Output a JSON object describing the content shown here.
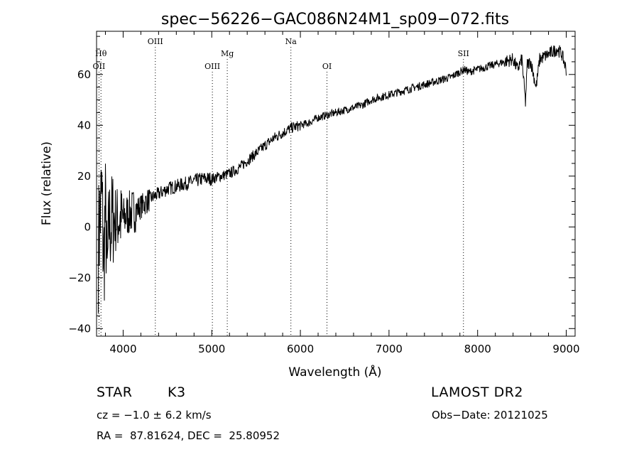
{
  "chart_data": {
    "type": "line",
    "title": "spec−56226−GAC086N24M1_sp09−072.fits",
    "xlabel": "Wavelength (Å)",
    "ylabel": "Flux (relative)",
    "xlim": [
      3700,
      9100
    ],
    "ylim": [
      -43,
      77
    ],
    "x_ticks": [
      4000,
      5000,
      6000,
      7000,
      8000,
      9000
    ],
    "y_ticks": [
      -40,
      -20,
      0,
      20,
      40,
      60
    ],
    "y_tick_labels": [
      "−40",
      "−20",
      "0",
      "20",
      "40",
      "60"
    ],
    "grid": false,
    "series": [
      {
        "x": [
          3720,
          3740,
          3760,
          3780,
          3800,
          3820,
          3840,
          3860,
          3880,
          3900,
          3950,
          4000,
          4050,
          4100,
          4150,
          4200,
          4300,
          4400,
          4500,
          4600,
          4700,
          4800,
          4900,
          5000,
          5100,
          5200,
          5300,
          5400,
          5500,
          5600,
          5700,
          5800,
          5900,
          6000,
          6100,
          6200,
          6300,
          6400,
          6500,
          6600,
          6700,
          6800,
          6900,
          7000,
          7100,
          7200,
          7300,
          7400,
          7500,
          7600,
          7700,
          7800,
          7850,
          7900,
          8000,
          8100,
          8200,
          8300,
          8400,
          8450,
          8500,
          8540,
          8560,
          8600,
          8660,
          8700,
          8750,
          8800,
          8850,
          8900,
          8950,
          9000
        ],
        "y": [
          -8,
          5,
          12,
          -15,
          8,
          -20,
          2,
          0,
          4,
          3,
          3,
          3,
          5,
          6,
          7,
          8,
          11,
          13,
          15,
          16,
          17,
          18,
          19,
          19,
          20,
          21,
          23,
          26,
          29,
          32,
          35,
          37,
          39,
          40,
          41,
          43,
          44,
          45,
          46,
          47,
          48,
          50,
          51,
          52,
          53,
          54,
          55,
          56,
          57,
          58,
          59,
          61,
          62,
          61,
          62,
          63,
          64,
          65,
          66,
          62,
          66,
          49,
          64,
          65,
          55,
          66,
          67,
          68,
          69,
          70,
          68,
          62
        ]
      }
    ],
    "line_markers": [
      {
        "label": "Hθ",
        "x": 3750,
        "row": 2
      },
      {
        "label": "OII",
        "x": 3727,
        "row": 3
      },
      {
        "label": "OIII",
        "x": 4363,
        "row": 1
      },
      {
        "label": "OIII",
        "x": 5007,
        "row": 3
      },
      {
        "label": "Mg",
        "x": 5175,
        "row": 2
      },
      {
        "label": "Na",
        "x": 5893,
        "row": 1
      },
      {
        "label": "OI",
        "x": 6300,
        "row": 3
      },
      {
        "label": "SII",
        "x": 7840,
        "row": 2
      }
    ]
  },
  "info": {
    "object_class": "STAR",
    "subclass": "K3",
    "survey": "LAMOST DR2",
    "redshift": "cz = −1.0 ± 6.2 km/s",
    "obs_date": "Obs−Date: 20121025",
    "coords": "RA =  87.81624, DEC =  25.80952"
  }
}
